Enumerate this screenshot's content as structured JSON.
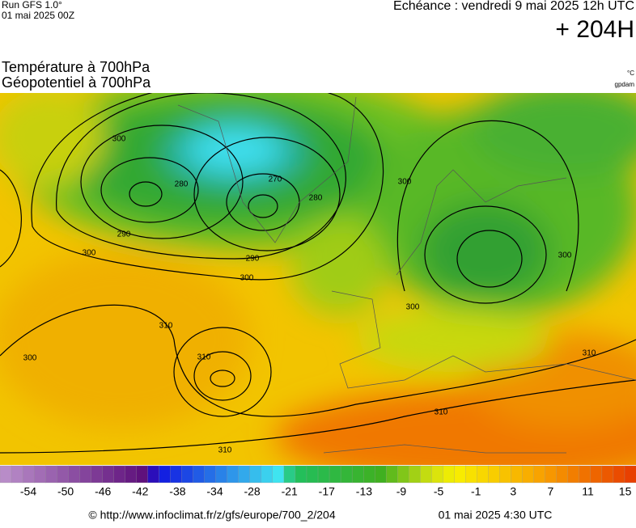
{
  "header": {
    "run": "Run GFS 1.0°",
    "run_date": "01 mai 2025 00Z",
    "echeance": "Echéance : vendredi 9 mai 2025 12h UTC",
    "lead": "+ 204H",
    "title_temperature": "Température à 700hPa",
    "title_geopotential": "Géopotentiel à 700hPa",
    "unit_temperature": "°C",
    "unit_geopotential": "gpdam"
  },
  "map": {
    "contour_labels": [
      "300",
      "280",
      "290",
      "300",
      "270",
      "280",
      "290",
      "300",
      "300",
      "300",
      "300",
      "310",
      "310",
      "300",
      "310",
      "310",
      "310"
    ]
  },
  "legend": {
    "ticks": [
      -54,
      -50,
      -46,
      -42,
      -38,
      -34,
      -28,
      -21,
      -17,
      -13,
      -9,
      -5,
      -1,
      3,
      7,
      11,
      15
    ]
  },
  "footer": {
    "url": "© http://www.infoclimat.fr/z/gfs/europe/700_2/204",
    "issued": "01 mai 2025  4:30 UTC"
  }
}
